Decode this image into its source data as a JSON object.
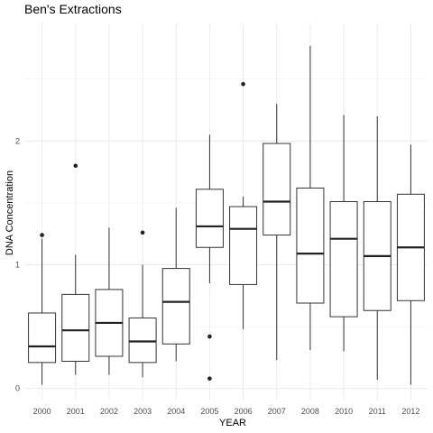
{
  "chart_data": {
    "type": "boxplot",
    "title": "Ben's Extractions",
    "xlabel": "YEAR",
    "ylabel": "DNA Concentration",
    "ylim": [
      -0.09,
      2.95
    ],
    "y_ticks": [
      0,
      1,
      2
    ],
    "grid": true,
    "categories": [
      "2000",
      "2001",
      "2002",
      "2003",
      "2004",
      "2005",
      "2006",
      "2007",
      "2008",
      "2010",
      "2011",
      "2012"
    ],
    "boxes": [
      {
        "category": "2000",
        "whisker_low": 0.03,
        "q1": 0.21,
        "median": 0.34,
        "q3": 0.61,
        "whisker_high": 1.21,
        "outliers": [
          1.24
        ]
      },
      {
        "category": "2001",
        "whisker_low": 0.11,
        "q1": 0.22,
        "median": 0.47,
        "q3": 0.76,
        "whisker_high": 1.08,
        "outliers": [
          1.8
        ]
      },
      {
        "category": "2002",
        "whisker_low": 0.11,
        "q1": 0.26,
        "median": 0.53,
        "q3": 0.8,
        "whisker_high": 1.3,
        "outliers": []
      },
      {
        "category": "2003",
        "whisker_low": 0.09,
        "q1": 0.21,
        "median": 0.38,
        "q3": 0.57,
        "whisker_high": 1.0,
        "outliers": [
          1.26
        ]
      },
      {
        "category": "2004",
        "whisker_low": 0.22,
        "q1": 0.36,
        "median": 0.7,
        "q3": 0.97,
        "whisker_high": 1.46,
        "outliers": []
      },
      {
        "category": "2005",
        "whisker_low": 0.85,
        "q1": 1.14,
        "median": 1.31,
        "q3": 1.61,
        "whisker_high": 2.05,
        "outliers": [
          0.42,
          0.08
        ]
      },
      {
        "category": "2006",
        "whisker_low": 0.48,
        "q1": 0.84,
        "median": 1.29,
        "q3": 1.47,
        "whisker_high": 1.55,
        "outliers": [
          2.46
        ]
      },
      {
        "category": "2007",
        "whisker_low": 0.23,
        "q1": 1.24,
        "median": 1.51,
        "q3": 1.98,
        "whisker_high": 2.3,
        "outliers": []
      },
      {
        "category": "2008",
        "whisker_low": 0.31,
        "q1": 0.69,
        "median": 1.09,
        "q3": 1.62,
        "whisker_high": 2.77,
        "outliers": []
      },
      {
        "category": "2010",
        "whisker_low": 0.3,
        "q1": 0.58,
        "median": 1.21,
        "q3": 1.51,
        "whisker_high": 2.21,
        "outliers": []
      },
      {
        "category": "2011",
        "whisker_low": 0.07,
        "q1": 0.63,
        "median": 1.07,
        "q3": 1.51,
        "whisker_high": 2.2,
        "outliers": []
      },
      {
        "category": "2012",
        "whisker_low": 0.03,
        "q1": 0.71,
        "median": 1.14,
        "q3": 1.57,
        "whisker_high": 1.97,
        "outliers": []
      }
    ]
  }
}
